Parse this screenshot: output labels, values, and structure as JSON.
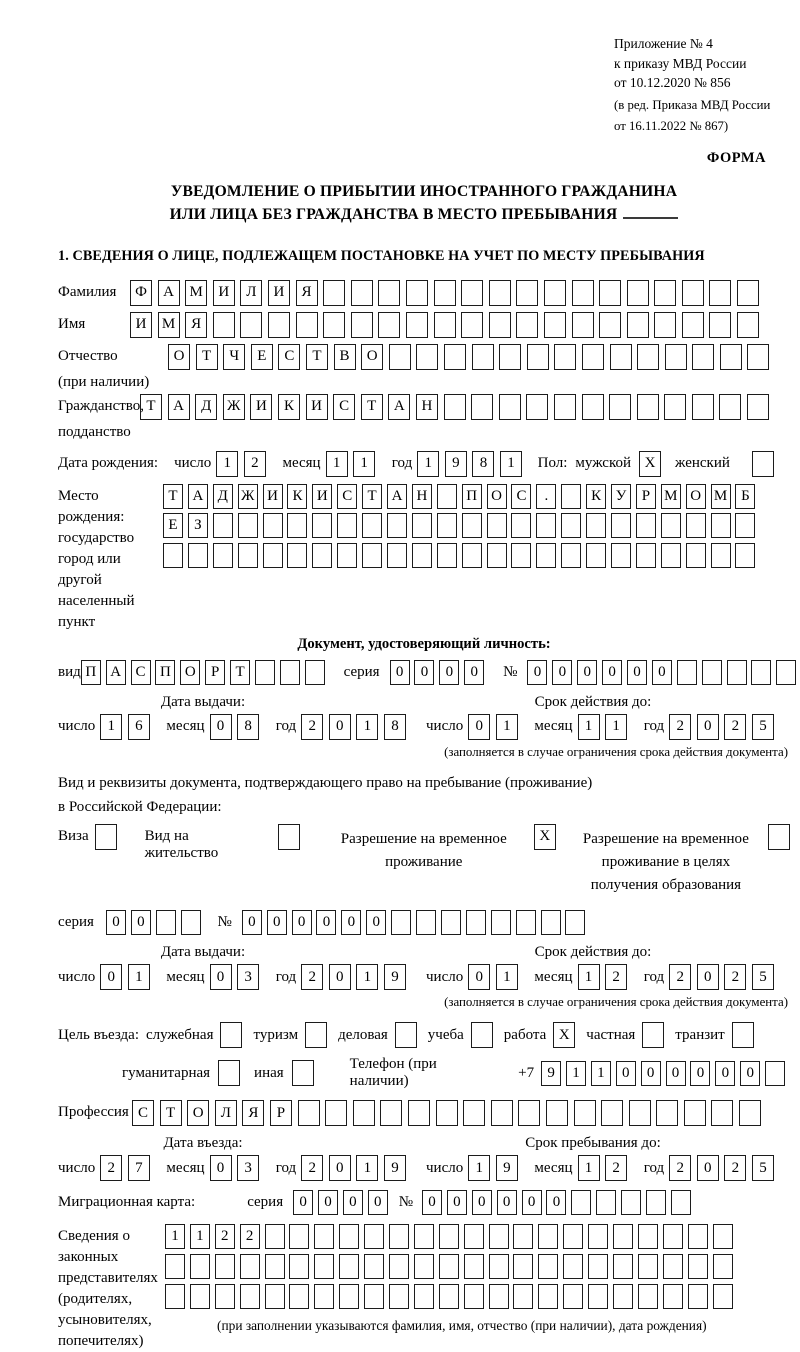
{
  "header": {
    "appendix_line1": "Приложение № 4",
    "appendix_line2": "к приказу МВД России",
    "appendix_line3": "от 10.12.2020 № 856",
    "amendment_line1": "(в ред. Приказа МВД России",
    "amendment_line2": "от 16.11.2022 № 867)",
    "form_label": "ФОРМА"
  },
  "title": {
    "line1": "УВЕДОМЛЕНИЕ О ПРИБЫТИИ ИНОСТРАННОГО ГРАЖДАНИНА",
    "line2": "ИЛИ ЛИЦА БЕЗ ГРАЖДАНСТВА В МЕСТО ПРЕБЫВАНИЯ"
  },
  "section_heading": "1. СВЕДЕНИЯ О ЛИЦЕ, ПОДЛЕЖАЩЕМ ПОСТАНОВКЕ НА УЧЕТ ПО МЕСТУ ПРЕБЫВАНИЯ",
  "date_labels": {
    "day": "число",
    "month": "месяц",
    "year": "год"
  },
  "fields": {
    "surname": {
      "label": "Фамилия",
      "cells": {
        "value": "ФАМИЛИЯ",
        "total": 23
      }
    },
    "given_name": {
      "label": "Имя",
      "cells": {
        "value": "ИМЯ",
        "total": 23
      }
    },
    "patronymic": {
      "label": "Отчество",
      "sublabel": "(при наличии)",
      "cells": {
        "value": "ОТЧЕСТВО",
        "total": 22
      }
    },
    "citizenship": {
      "label": "Гражданство,",
      "sublabel": "подданство",
      "cells": {
        "value": "ТАДЖИКИСТАН",
        "total": 23
      }
    },
    "birth_date": {
      "label": "Дата рождения:",
      "day": "12",
      "month": "11",
      "year": "1981",
      "sex_label": "Пол:",
      "male_label": "мужской",
      "male_mark": "X",
      "female_label": "женский",
      "female_mark": ""
    },
    "birth_place": {
      "label1": "Место рождения:",
      "label2": "государство",
      "label3": "город или другой",
      "label4": "населенный пункт",
      "row1": {
        "value": "ТАДЖИКИСТАН ПОС. КУРМОМБ",
        "total": 24
      },
      "row2": {
        "value": "ЕЗ",
        "total": 24
      },
      "row3": {
        "value": "",
        "total": 24
      }
    }
  },
  "identity_doc": {
    "heading": "Документ, удостоверяющий личность:",
    "kind_label": "вид",
    "kind_cells": {
      "value": "ПАСПОРТ",
      "total": 10
    },
    "series_label": "серия",
    "series_cells": {
      "value": "0000",
      "total": 4
    },
    "number_label": "№",
    "number_cells": {
      "value": "000000",
      "total": 11
    },
    "issue_heading": "Дата выдачи:",
    "issue": {
      "day": "16",
      "month": "08",
      "year": "2018"
    },
    "expiry_heading": "Срок действия до:",
    "expiry": {
      "day": "01",
      "month": "11",
      "year": "2025"
    },
    "note": "(заполняется в случае ограничения срока действия документа)"
  },
  "residence_doc": {
    "intro_line1": "Вид и реквизиты документа, подтверждающего право на пребывание (проживание)",
    "intro_line2": "в Российской Федерации:",
    "options": [
      {
        "label": "Виза",
        "mark": ""
      },
      {
        "label": "Вид на жительство",
        "mark": ""
      },
      {
        "label": "Разрешение на временное проживание",
        "mark": "X"
      },
      {
        "label": "Разрешение на временное проживание в целях получения образования",
        "mark": ""
      }
    ],
    "series_label": "серия",
    "series_cells": {
      "value": "00",
      "total": 4
    },
    "number_label": "№",
    "number_cells": {
      "value": "000000",
      "total": 14
    },
    "issue_heading": "Дата выдачи:",
    "issue": {
      "day": "01",
      "month": "03",
      "year": "2019"
    },
    "expiry_heading": "Срок действия до:",
    "expiry": {
      "day": "01",
      "month": "12",
      "year": "2025"
    },
    "note": "(заполняется в случае ограничения срока действия документа)"
  },
  "visit": {
    "purpose_label": "Цель въезда:",
    "purposes_row1": [
      {
        "label": "служебная",
        "mark": ""
      },
      {
        "label": "туризм",
        "mark": ""
      },
      {
        "label": "деловая",
        "mark": ""
      },
      {
        "label": "учеба",
        "mark": ""
      },
      {
        "label": "работа",
        "mark": "X"
      },
      {
        "label": "частная",
        "mark": ""
      },
      {
        "label": "транзит",
        "mark": ""
      }
    ],
    "purposes_row2": [
      {
        "label": "гуманитарная",
        "mark": ""
      },
      {
        "label": "иная",
        "mark": ""
      }
    ],
    "phone_label": "Телефон (при наличии)",
    "phone_prefix": "+7",
    "phone_cells": {
      "value": "911000000",
      "total": 10
    },
    "profession_label": "Профессия",
    "profession_cells": {
      "value": "СТОЛЯР",
      "total": 23
    },
    "entry_heading": "Дата въезда:",
    "entry": {
      "day": "27",
      "month": "03",
      "year": "2019"
    },
    "stay_heading": "Срок пребывания до:",
    "stay": {
      "day": "19",
      "month": "12",
      "year": "2025"
    }
  },
  "migration_card": {
    "label": "Миграционная карта:",
    "series_label": "серия",
    "series_cells": {
      "value": "0000",
      "total": 4
    },
    "number_label": "№",
    "number_cells": {
      "value": "000000",
      "total": 11
    }
  },
  "legal_representatives": {
    "label_lines": [
      "Сведения о",
      "законных",
      "представителях",
      "(родителях,",
      "усыновителях,",
      "попечителях)"
    ],
    "row1": {
      "value": "1122",
      "total": 23
    },
    "row2": {
      "value": "",
      "total": 23
    },
    "row3": {
      "value": "",
      "total": 23
    },
    "note": "(при заполнении указываются фамилия, имя, отчество (при наличии), дата рождения)"
  }
}
